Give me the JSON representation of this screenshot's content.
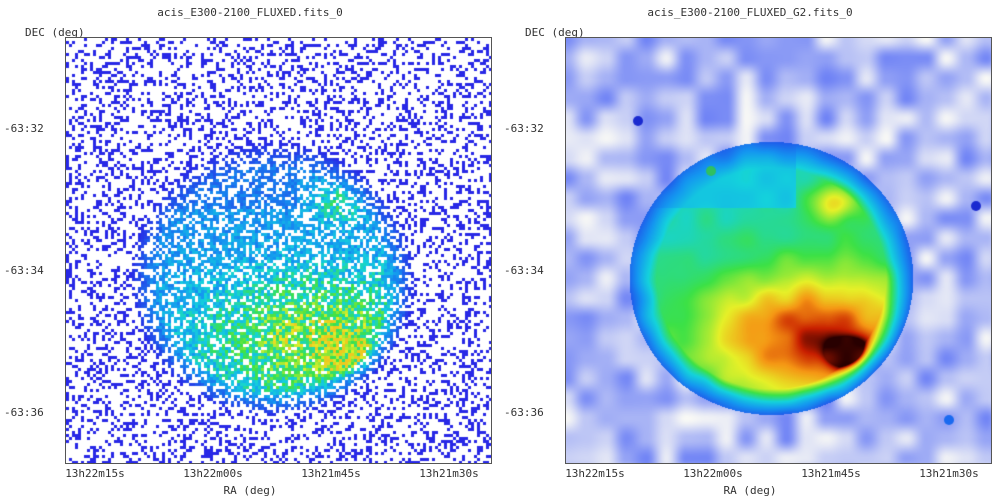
{
  "panels": [
    {
      "title": "acis_E300-2100_FLUXED.fits_0",
      "ylabel": "DEC (deg)",
      "xlabel": "RA (deg)",
      "yticks": [
        "-63:32",
        "-63:34",
        "-63:36"
      ],
      "xticks": [
        "13h22m15s",
        "13h22m00s",
        "13h21m45s",
        "13h21m30s"
      ],
      "colormap": "rainbow-sparse"
    },
    {
      "title": "acis_E300-2100_FLUXED_G2.fits_0",
      "ylabel": "DEC (deg)",
      "xlabel": "RA (deg)",
      "yticks": [
        "-63:32",
        "-63:34",
        "-63:36"
      ],
      "xticks": [
        "13h22m15s",
        "13h22m00s",
        "13h21m45s",
        "13h21m30s"
      ],
      "colormap": "rainbow-smoothed"
    }
  ],
  "colors": {
    "low": "#2f3cf2",
    "mid": "#10d0e0",
    "green": "#38e040",
    "yellow": "#f0f020",
    "orange": "#f08010",
    "high": "#a00000",
    "background": "#ffffff"
  }
}
